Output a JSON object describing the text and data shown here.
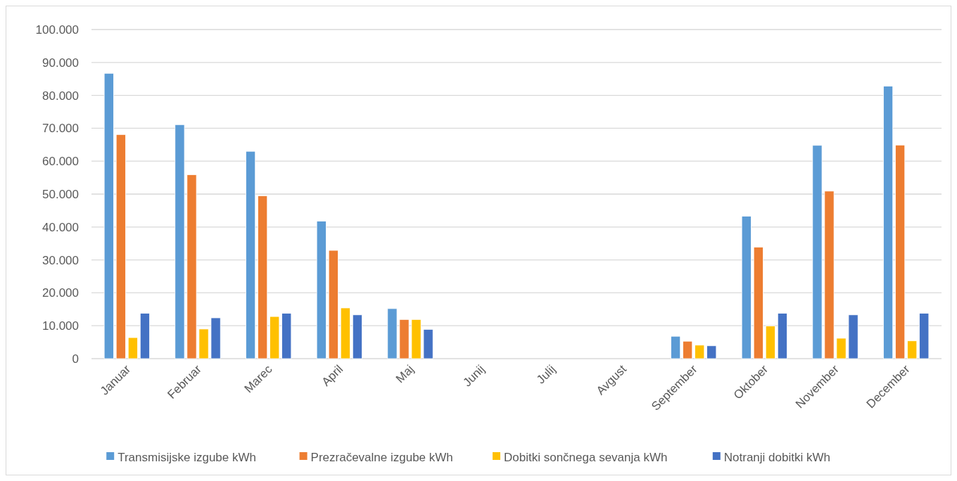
{
  "chart_data": {
    "type": "bar",
    "categories": [
      "Januar",
      "Februar",
      "Marec",
      "April",
      "Maj",
      "Junij",
      "Julij",
      "Avgust",
      "September",
      "Oktober",
      "November",
      "December"
    ],
    "series": [
      {
        "name": "Transmisijske izgube kWh",
        "color": "#5b9bd5",
        "values": [
          86700,
          71100,
          63000,
          41800,
          15200,
          0,
          0,
          0,
          6800,
          43300,
          64800,
          82800
        ]
      },
      {
        "name": "Prezračevalne izgube kWh",
        "color": "#ed7d31",
        "values": [
          68100,
          55900,
          49500,
          32900,
          11900,
          0,
          0,
          0,
          5300,
          33900,
          50900,
          64900
        ]
      },
      {
        "name": "Dobitki sončnega sevanja kWh",
        "color": "#ffc000",
        "values": [
          6400,
          9000,
          12800,
          15400,
          11900,
          0,
          0,
          0,
          4100,
          9900,
          6200,
          5400
        ]
      },
      {
        "name": "Notranji dobitki kWh",
        "color": "#4472c4",
        "values": [
          13800,
          12400,
          13800,
          13300,
          8900,
          0,
          0,
          0,
          3900,
          13800,
          13300,
          13800
        ]
      }
    ],
    "ylim": [
      0,
      100000
    ],
    "yticks": [
      {
        "value": 0,
        "label": "0"
      },
      {
        "value": 10000,
        "label": "10.000"
      },
      {
        "value": 20000,
        "label": "20.000"
      },
      {
        "value": 30000,
        "label": "30.000"
      },
      {
        "value": 40000,
        "label": "40.000"
      },
      {
        "value": 50000,
        "label": "50.000"
      },
      {
        "value": 60000,
        "label": "60.000"
      },
      {
        "value": 70000,
        "label": "70.000"
      },
      {
        "value": 80000,
        "label": "80.000"
      },
      {
        "value": 90000,
        "label": "90.000"
      },
      {
        "value": 100000,
        "label": "100.000"
      }
    ],
    "grid": "y",
    "legend": "bottom"
  }
}
